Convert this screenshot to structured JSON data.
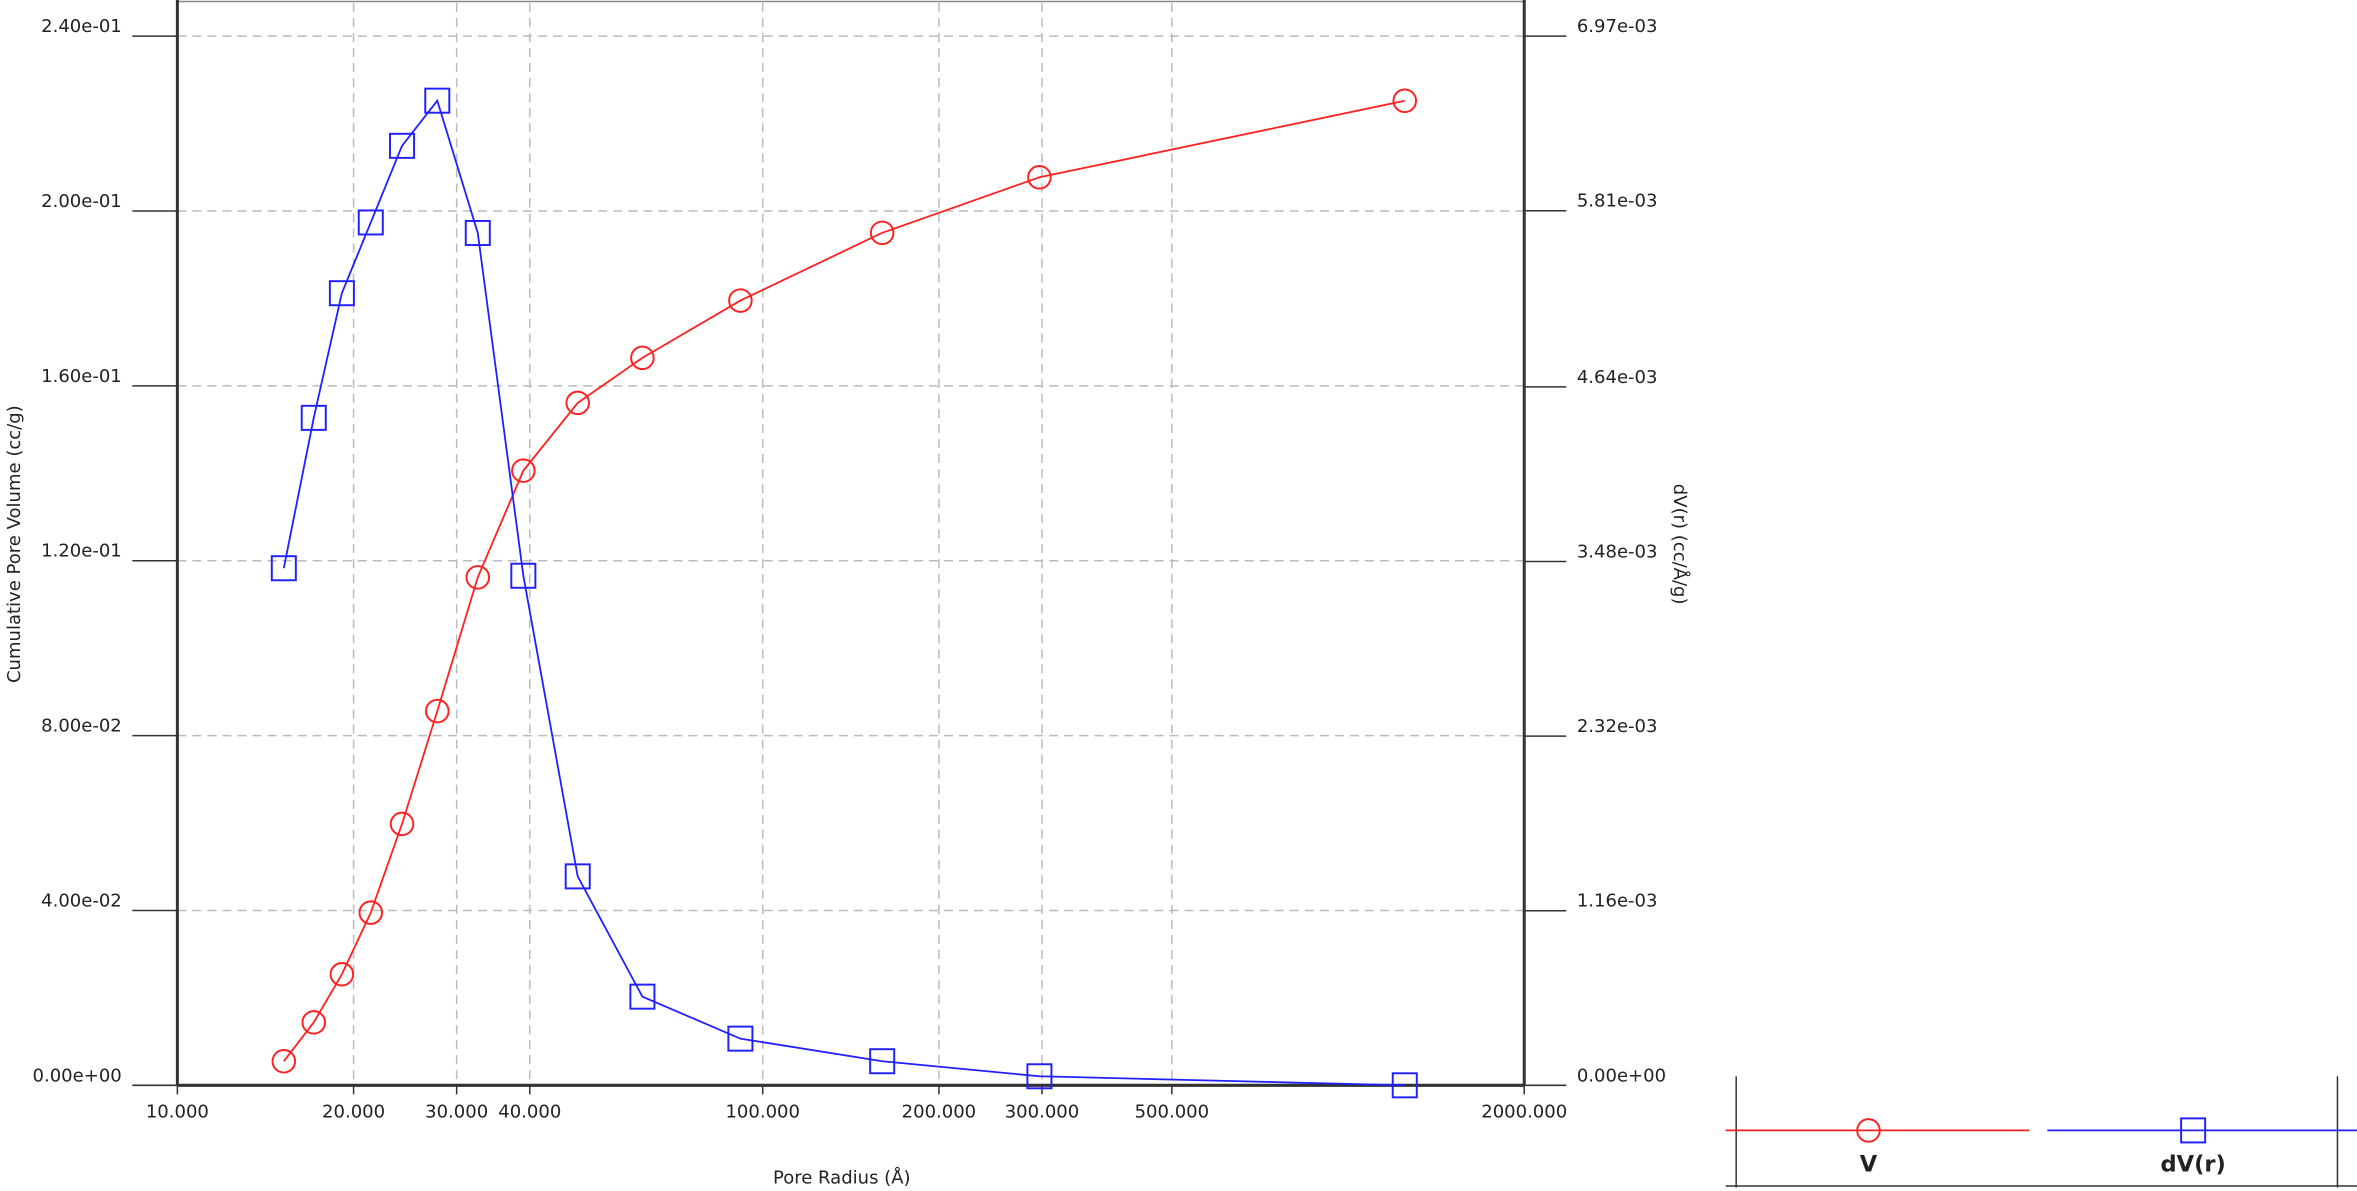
{
  "chart_data": {
    "type": "line",
    "x_label": "Pore Radius (Å)",
    "y_label": "Cumulative Pore Volume (cc/g)",
    "y2_label": "dV(r) (cc/Å/g)",
    "log_x": true,
    "grid": true,
    "legend": "bottom-right",
    "x": [
      15.2,
      17.1,
      19.1,
      21.4,
      24.2,
      27.8,
      32.6,
      39.0,
      48.3,
      62.3,
      91.6,
      160,
      297,
      1250
    ],
    "series": [
      {
        "name": "V",
        "color": "#ff2020",
        "marker": "circle",
        "values": [
          0.0055,
          0.0144,
          0.0254,
          0.0395,
          0.0598,
          0.0856,
          0.1162,
          0.1406,
          0.1561,
          0.1664,
          0.1795,
          0.195,
          0.2077,
          0.2252
        ]
      },
      {
        "name": "dV(r)",
        "color": "#2020ff",
        "marker": "square",
        "axis": "y2",
        "values": [
          0.003435,
          0.004434,
          0.005262,
          0.005732,
          0.006241,
          0.006541,
          0.005662,
          0.003385,
          0.001388,
          0.000589,
          0.00031,
          0.00016,
          6e-05,
          0.0
        ]
      }
    ],
    "xlim": [
      10,
      2000
    ],
    "xticks": [
      {
        "value": 10,
        "label": "10.000"
      },
      {
        "value": 20,
        "label": "20.000"
      },
      {
        "value": 30,
        "label": "30.000"
      },
      {
        "value": 40,
        "label": "40.000"
      },
      {
        "value": 100,
        "label": "100.000"
      },
      {
        "value": 200,
        "label": "200.000"
      },
      {
        "value": 300,
        "label": "300.000"
      },
      {
        "value": 500,
        "label": "500.000"
      },
      {
        "value": 2000,
        "label": "2000.000"
      }
    ],
    "ylim": [
      0,
      0.24
    ],
    "yticks": [
      {
        "value": 0,
        "label": "0.00e+00"
      },
      {
        "value": 0.04,
        "label": "4.00e-02"
      },
      {
        "value": 0.08,
        "label": "8.00e-02"
      },
      {
        "value": 0.12,
        "label": "1.20e-01"
      },
      {
        "value": 0.16,
        "label": "1.60e-01"
      },
      {
        "value": 0.2,
        "label": "2.00e-01"
      },
      {
        "value": 0.24,
        "label": "2.40e-01"
      }
    ],
    "y2lim": [
      0,
      0.00697
    ],
    "y2ticks": [
      {
        "value": 0,
        "label": "0.00e+00"
      },
      {
        "value": 0.00116,
        "label": "1.16e-03"
      },
      {
        "value": 0.00232,
        "label": "2.32e-03"
      },
      {
        "value": 0.00348,
        "label": "3.48e-03"
      },
      {
        "value": 0.00464,
        "label": "4.64e-03"
      },
      {
        "value": 0.00581,
        "label": "5.81e-03"
      },
      {
        "value": 0.00697,
        "label": "6.97e-03"
      }
    ]
  }
}
